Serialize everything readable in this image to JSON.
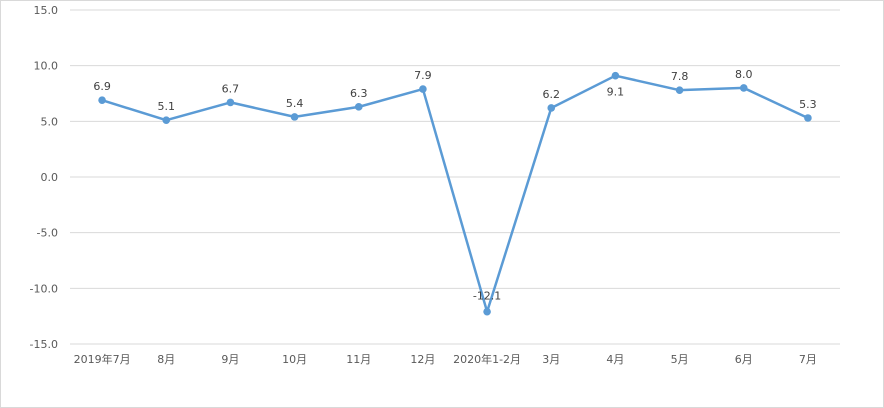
{
  "chart_data": {
    "type": "line",
    "categories": [
      "2019年7月",
      "8月",
      "9月",
      "10月",
      "11月",
      "12月",
      "2020年1-2月",
      "3月",
      "4月",
      "5月",
      "6月",
      "7月"
    ],
    "series": [
      {
        "values": [
          6.9,
          5.1,
          6.7,
          5.4,
          6.3,
          7.9,
          -12.1,
          6.2,
          9.1,
          7.8,
          8.0,
          5.3
        ],
        "labels": [
          "6.9",
          "5.1",
          "6.7",
          "5.4",
          "6.3",
          "7.9",
          "-12.1",
          "6.2",
          "9.1",
          "7.8",
          "8.0",
          "5.3"
        ],
        "color": "#5b9bd5"
      }
    ],
    "ylim": [
      -15,
      15
    ],
    "yticks": [
      15.0,
      10.0,
      5.0,
      0.0,
      -5.0,
      -10.0,
      -15.0
    ],
    "ytick_labels": [
      "15.0",
      "10.0",
      "5.0",
      "0.0",
      "-5.0",
      "-10.0",
      "-15.0"
    ],
    "grid": true,
    "gridline_color": "#d9d9d9",
    "title": "",
    "xlabel": "",
    "ylabel": ""
  }
}
